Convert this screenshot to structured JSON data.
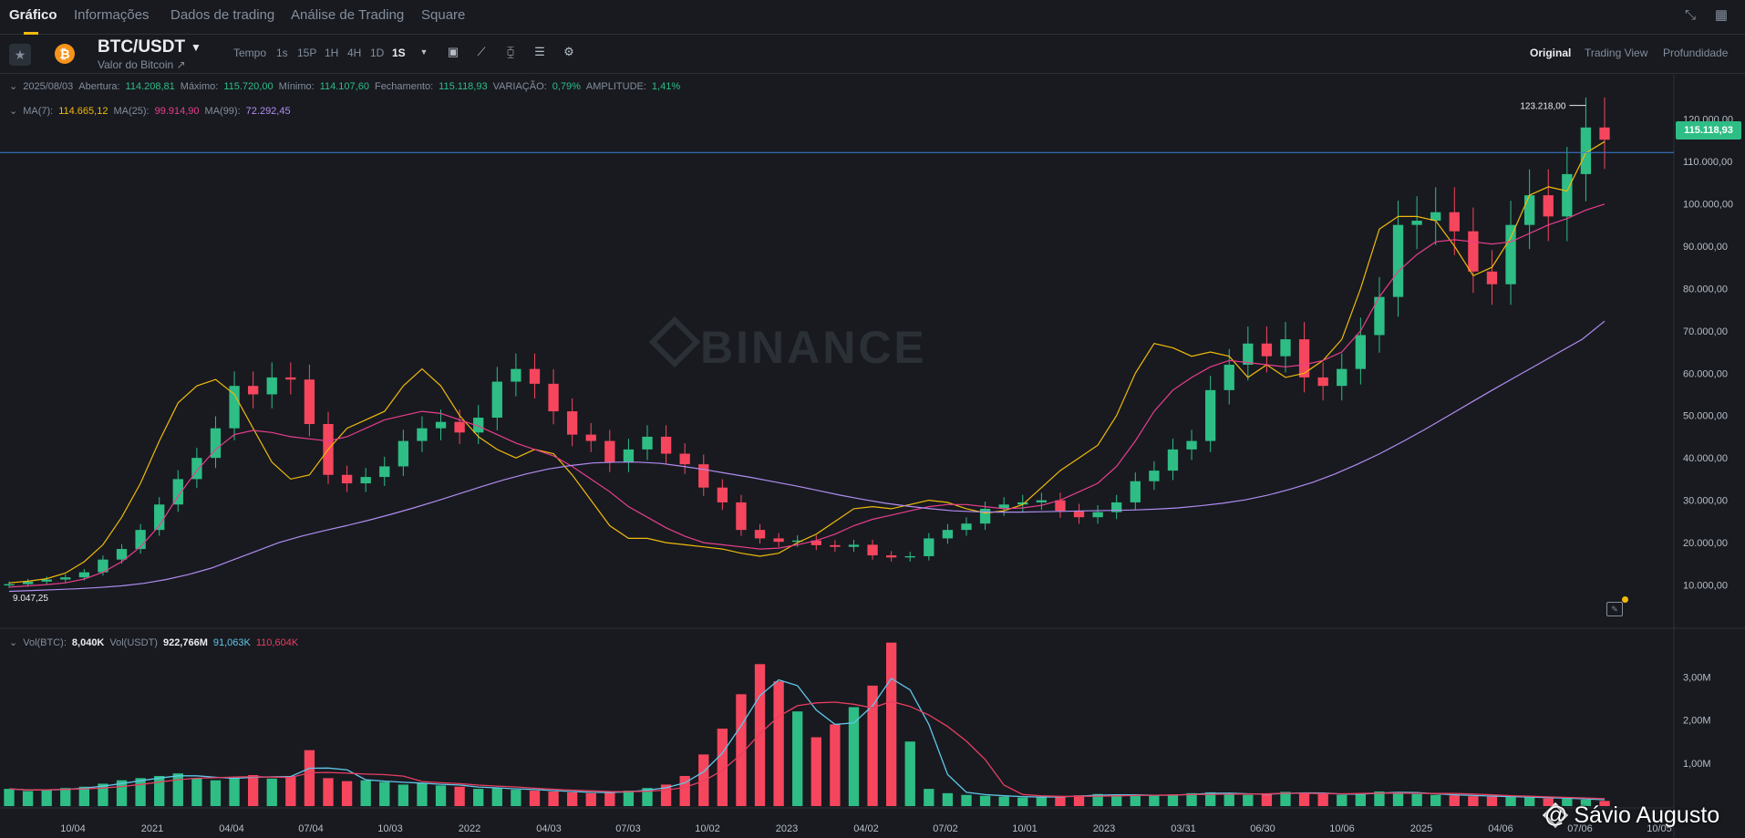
{
  "nav": {
    "tabs": [
      "Gráfico",
      "Informações",
      "Dados de trading",
      "Análise de Trading",
      "Square"
    ],
    "active_tab": "Gráfico"
  },
  "toolbar": {
    "symbol": "BTC/USDT",
    "subtitle": "Valor do Bitcoin ↗",
    "timeframe_label": "Tempo",
    "timeframes": [
      "1s",
      "15P",
      "1H",
      "4H",
      "1D",
      "1S"
    ],
    "active_timeframe": "1S",
    "icons": [
      "calendar-icon",
      "indicator-icon",
      "candle-type-icon",
      "layout-icon",
      "settings-icon"
    ],
    "views": [
      "Original",
      "Trading View",
      "Profundidade"
    ],
    "active_view": "Original"
  },
  "ohlc": {
    "date": "2025/08/03",
    "open_label": "Abertura:",
    "open": "114.208,81",
    "high_label": "Máximo:",
    "high": "115.720,00",
    "low_label": "Mínimo:",
    "low": "114.107,60",
    "close_label": "Fechamento:",
    "close": "115.118,93",
    "change_label": "VARIAÇÃO:",
    "change": "0,79%",
    "amplitude_label": "AMPLITUDE:",
    "amplitude": "1,41%"
  },
  "ma_legend": {
    "ma7_label": "MA(7):",
    "ma7": "114.665,12",
    "ma25_label": "MA(25):",
    "ma25": "99.914,90",
    "ma99_label": "MA(99):",
    "ma99": "72.292,45"
  },
  "vol_legend": {
    "vol_btc_label": "Vol(BTC):",
    "vol_btc": "8,040K",
    "vol_usdt_label": "Vol(USDT)",
    "vol_usdt": "922,766M",
    "ma1": "91,063K",
    "ma2": "110,604K"
  },
  "price_tag": "115.118,93",
  "high_marker": "123.218,00",
  "low_marker": "9.047,25",
  "watermark": "BINANCE",
  "credit": "@ Sávio Augusto",
  "colors": {
    "up": "#2ebd85",
    "down": "#f6465d",
    "ma7": "#f0b90b",
    "ma25": "#e83e8c",
    "ma99": "#b18cf0",
    "vol_ma1": "#61c6e8",
    "vol_ma2": "#e83e60",
    "last_line": "#3b7fd6"
  },
  "chart_data": {
    "type": "line",
    "title": "",
    "x_tick_labels": [
      "10/04",
      "2021",
      "04/04",
      "07/04",
      "10/03",
      "2022",
      "04/03",
      "07/03",
      "10/02",
      "2023",
      "04/02",
      "07/02",
      "10/01",
      "2023",
      "03/31",
      "06/30",
      "10/06",
      "2025",
      "04/06",
      "07/06",
      "10/05"
    ],
    "y_tick_labels": [
      "120.000,00",
      "110.000,00",
      "100.000,00",
      "90.000,00",
      "80.000,00",
      "70.000,00",
      "60.000,00",
      "50.000,00",
      "40.000,00",
      "30.000,00",
      "20.000,00",
      "10.000,00"
    ],
    "y_ticks": [
      120000,
      110000,
      100000,
      90000,
      80000,
      70000,
      60000,
      50000,
      40000,
      30000,
      20000,
      10000
    ],
    "ylim": [
      0,
      127000
    ],
    "vol_tick_labels": [
      "3,00M",
      "2,00M",
      "1,00M"
    ],
    "vol_ticks": [
      3000000,
      2000000,
      1000000
    ],
    "vol_ylim": [
      0,
      3900000
    ],
    "series": [
      {
        "name": "MA(7)",
        "values": [
          10500,
          10900,
          11500,
          12800,
          15500,
          19500,
          26000,
          34000,
          44000,
          53000,
          57000,
          58500,
          55000,
          47000,
          39000,
          35000,
          36000,
          42000,
          47000,
          49000,
          51000,
          57000,
          61000,
          57000,
          50000,
          45000,
          42000,
          40000,
          42000,
          41000,
          36000,
          30000,
          24000,
          21000,
          21000,
          20000,
          19500,
          19000,
          18500,
          17500,
          16800,
          17500,
          20000,
          22000,
          25000,
          28000,
          28500,
          28000,
          29000,
          30000,
          29500,
          28000,
          27000,
          27500,
          29000,
          33000,
          37000,
          40000,
          43000,
          50000,
          60000,
          67000,
          66000,
          64000,
          65000,
          64000,
          59000,
          62000,
          59000,
          60000,
          63000,
          68000,
          80000,
          94000,
          97000,
          97000,
          96000,
          90000,
          83000,
          85000,
          92000,
          102000,
          104000,
          103000,
          112000,
          114665
        ]
      },
      {
        "name": "MA(25)",
        "values": [
          9500,
          9800,
          10100,
          10500,
          11400,
          13000,
          15500,
          19000,
          24000,
          31000,
          37000,
          42000,
          45500,
          46500,
          46000,
          45000,
          44500,
          44000,
          45000,
          47000,
          49000,
          50000,
          51000,
          50500,
          49000,
          47500,
          45500,
          43500,
          42000,
          40500,
          38000,
          35000,
          32000,
          28500,
          26000,
          23500,
          21500,
          20000,
          19500,
          19000,
          18500,
          18700,
          19500,
          20500,
          22000,
          24000,
          25500,
          26500,
          27500,
          28500,
          29000,
          29000,
          28500,
          28000,
          28200,
          28800,
          30000,
          32000,
          34000,
          38000,
          44000,
          51000,
          56000,
          59000,
          61500,
          63000,
          62500,
          62000,
          61500,
          62000,
          63000,
          65000,
          70000,
          78000,
          84000,
          88000,
          91000,
          91500,
          91000,
          90500,
          91000,
          93000,
          95000,
          96500,
          98500,
          99915
        ]
      },
      {
        "name": "MA(99)",
        "values": [
          8500,
          8700,
          8900,
          9100,
          9400,
          9800,
          10400,
          11300,
          12500,
          14000,
          16000,
          18000,
          20000,
          21500,
          22800,
          24000,
          25300,
          26700,
          28200,
          29800,
          31500,
          33200,
          34800,
          36200,
          37400,
          38200,
          38800,
          39000,
          39000,
          38700,
          38000,
          37200,
          36300,
          35400,
          34400,
          33400,
          32300,
          31200,
          30200,
          29300,
          28600,
          28000,
          27500,
          27300,
          27200,
          27200,
          27300,
          27400,
          27500,
          27600,
          27700,
          27900,
          28200,
          28700,
          29300,
          30100,
          31200,
          32600,
          34200,
          36200,
          38500,
          41000,
          43800,
          46700,
          49800,
          52900,
          56000,
          59000,
          62000,
          65000,
          68000,
          72292
        ]
      }
    ],
    "candles": {
      "close": [
        10200,
        10800,
        11300,
        11800,
        13000,
        16000,
        18500,
        23000,
        29000,
        35000,
        40000,
        47000,
        57000,
        55000,
        59000,
        58500,
        48000,
        36000,
        34000,
        35500,
        38000,
        44000,
        47000,
        48500,
        46000,
        49500,
        58000,
        61000,
        57500,
        51000,
        45500,
        44000,
        39000,
        42000,
        45000,
        41000,
        38500,
        33000,
        29500,
        23000,
        21000,
        20200,
        20500,
        19400,
        19000,
        19500,
        17000,
        16500,
        16800,
        21000,
        23000,
        24500,
        28000,
        29000,
        29500,
        30000,
        27500,
        26000,
        27200,
        29500,
        34500,
        37000,
        42000,
        44000,
        56000,
        62000,
        67000,
        64000,
        68000,
        59000,
        57000,
        61000,
        69000,
        78000,
        95000,
        96000,
        98000,
        93500,
        84000,
        81000,
        95000,
        102000,
        97000,
        107000,
        118000,
        115119
      ],
      "up_color": "#2ebd85",
      "down_color": "#f6465d"
    },
    "volume": {
      "values": [
        400000,
        350000,
        380000,
        420000,
        450000,
        520000,
        600000,
        650000,
        700000,
        760000,
        650000,
        600000,
        680000,
        720000,
        640000,
        700000,
        1300000,
        650000,
        580000,
        600000,
        560000,
        500000,
        540000,
        480000,
        450000,
        400000,
        420000,
        380000,
        360000,
        340000,
        320000,
        300000,
        330000,
        360000,
        420000,
        500000,
        700000,
        1200000,
        1800000,
        2600000,
        3300000,
        2900000,
        2200000,
        1600000,
        1900000,
        2300000,
        2800000,
        3800000,
        1500000,
        400000,
        300000,
        260000,
        240000,
        220000,
        200000,
        210000,
        230000,
        250000,
        280000,
        260000,
        240000,
        250000,
        270000,
        300000,
        320000,
        280000,
        260000,
        290000,
        330000,
        300000,
        280000,
        260000,
        300000,
        340000,
        320000,
        280000,
        260000,
        250000,
        230000,
        220000,
        210000,
        200000,
        180000,
        170000,
        150000,
        120000
      ]
    }
  }
}
